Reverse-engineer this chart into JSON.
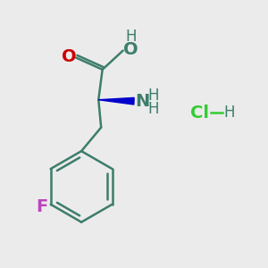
{
  "background_color": "#ebebeb",
  "bond_color": "#3d7d6b",
  "o_color": "#cc0000",
  "n_color": "#3d7d6b",
  "f_color": "#bb44bb",
  "cl_color": "#33cc33",
  "h_bond_color": "#3d7d6b",
  "wedge_color": "#0000cc",
  "figsize": [
    3.0,
    3.0
  ],
  "dpi": 100,
  "xlim": [
    0,
    10
  ],
  "ylim": [
    0,
    10
  ]
}
